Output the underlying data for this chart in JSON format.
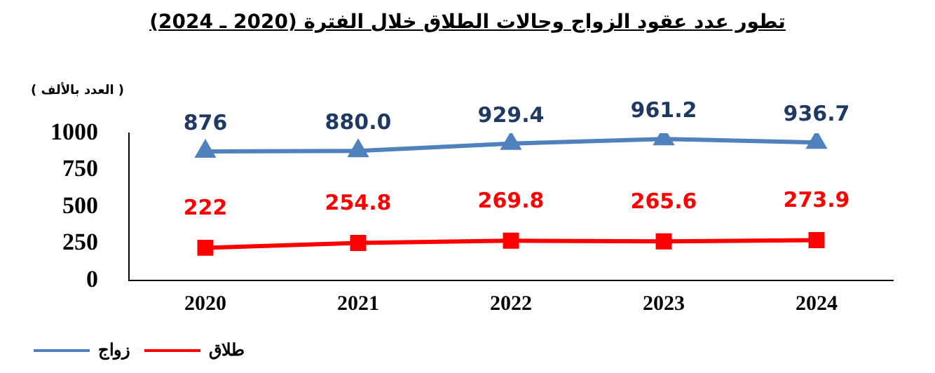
{
  "chart_data": {
    "type": "line",
    "title": "تطور عدد عقود الزواج وحالات الطلاق خلال الفترة (2020 ـ 2024)",
    "ylabel": "( العدد بالألف )",
    "categories": [
      "2020",
      "2021",
      "2022",
      "2023",
      "2024"
    ],
    "series": [
      {
        "name": "زواج",
        "color": "#4f81bd",
        "marker": "triangle",
        "values": [
          876,
          880,
          929.4,
          961.2,
          936.7
        ],
        "value_labels": [
          "876",
          "880.0",
          "929.4",
          "961.2",
          "936.7"
        ]
      },
      {
        "name": "طلاق",
        "color": "#ff0000",
        "marker": "square",
        "values": [
          222,
          254.8,
          269.8,
          265.6,
          273.9
        ],
        "value_labels": [
          "222",
          "254.8",
          "269.8",
          "265.6",
          "273.9"
        ]
      }
    ],
    "ylim": [
      0,
      1000
    ],
    "yticks": [
      0,
      250,
      500,
      750,
      1000
    ],
    "grid": false,
    "legend": "bottom left"
  }
}
